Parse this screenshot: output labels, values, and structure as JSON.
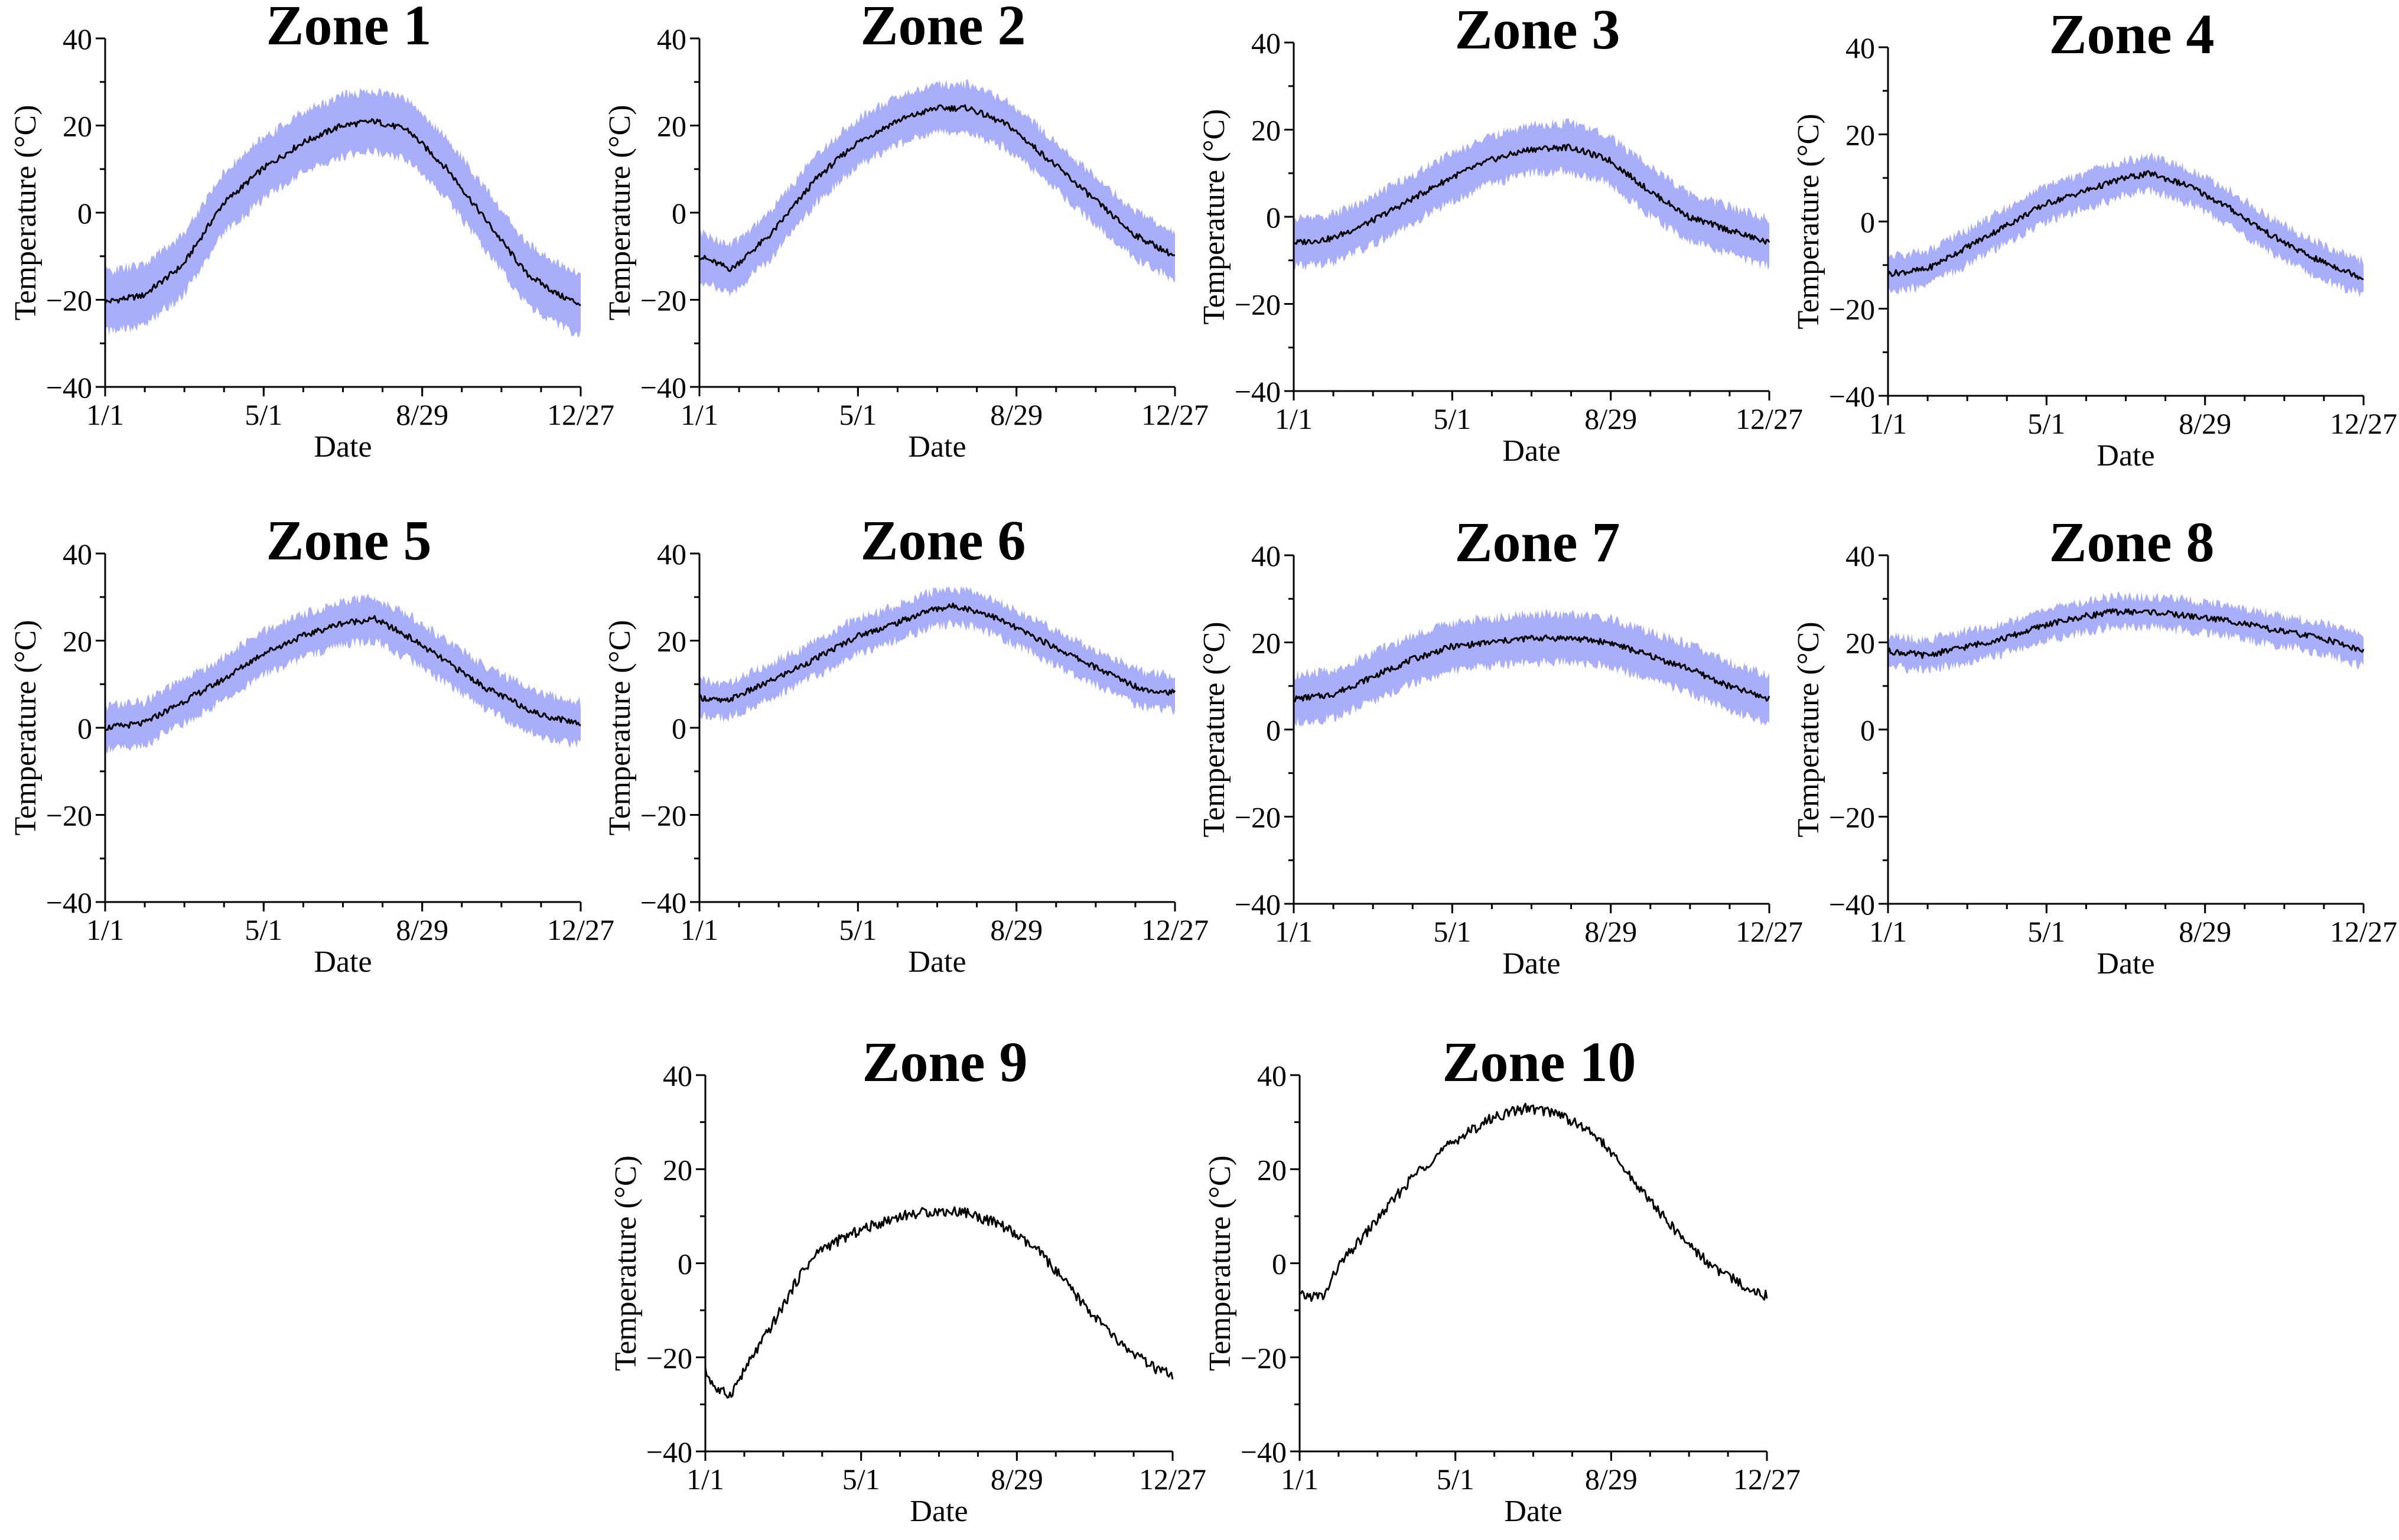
{
  "colors": {
    "mean_line": "#000000",
    "band_fill": "#a9aefb",
    "axis": "#000000"
  },
  "chart_data": [
    {
      "type": "area",
      "title": "Zone 1",
      "xlabel": "Date",
      "ylabel": "Temperature (°C)",
      "xticks": [
        "1/1",
        "5/1",
        "8/29",
        "12/27"
      ],
      "yticks": [
        "40",
        "20",
        "0",
        "−20",
        "−40"
      ],
      "ylim": [
        -40,
        40
      ],
      "mean": [
        [
          1,
          -20.5
        ],
        [
          30,
          -19
        ],
        [
          60,
          -12
        ],
        [
          90,
          2
        ],
        [
          120,
          10
        ],
        [
          150,
          16
        ],
        [
          180,
          20
        ],
        [
          205,
          21
        ],
        [
          230,
          19
        ],
        [
          260,
          10
        ],
        [
          290,
          -2
        ],
        [
          320,
          -14
        ],
        [
          345,
          -19
        ],
        [
          361,
          -21
        ]
      ],
      "band": [
        5,
        9
      ]
    },
    {
      "type": "area",
      "title": "Zone 2",
      "xlabel": "Date",
      "ylabel": "Temperature (°C)",
      "xticks": [
        "1/1",
        "5/1",
        "8/29",
        "12/27"
      ],
      "yticks": [
        "40",
        "20",
        "0",
        "−20",
        "−40"
      ],
      "ylim": [
        -40,
        40
      ],
      "mean": [
        [
          1,
          -10
        ],
        [
          25,
          -13
        ],
        [
          55,
          -5
        ],
        [
          90,
          8
        ],
        [
          120,
          16
        ],
        [
          150,
          21
        ],
        [
          180,
          24
        ],
        [
          205,
          24
        ],
        [
          235,
          20
        ],
        [
          270,
          11
        ],
        [
          300,
          3
        ],
        [
          330,
          -5
        ],
        [
          361,
          -10
        ]
      ],
      "band": [
        4,
        7
      ]
    },
    {
      "type": "area",
      "title": "Zone 3",
      "xlabel": "Date",
      "ylabel": "Temperature (°C)",
      "xticks": [
        "1/1",
        "5/1",
        "8/29",
        "12/27"
      ],
      "yticks": [
        "40",
        "20",
        "0",
        "−20",
        "−40"
      ],
      "ylim": [
        -40,
        40
      ],
      "mean": [
        [
          1,
          -6
        ],
        [
          30,
          -5
        ],
        [
          60,
          -1
        ],
        [
          90,
          4
        ],
        [
          120,
          9
        ],
        [
          150,
          13
        ],
        [
          180,
          15.5
        ],
        [
          210,
          16
        ],
        [
          240,
          13
        ],
        [
          270,
          6
        ],
        [
          300,
          0
        ],
        [
          330,
          -3
        ],
        [
          361,
          -6
        ]
      ],
      "band": [
        5,
        6
      ]
    },
    {
      "type": "area",
      "title": "Zone 4",
      "xlabel": "Date",
      "ylabel": "Temperature (°C)",
      "xticks": [
        "1/1",
        "5/1",
        "8/29",
        "12/27"
      ],
      "yticks": [
        "40",
        "20",
        "0",
        "−20",
        "−40"
      ],
      "ylim": [
        -40,
        40
      ],
      "mean": [
        [
          1,
          -12
        ],
        [
          30,
          -11
        ],
        [
          60,
          -6
        ],
        [
          90,
          -1
        ],
        [
          120,
          4
        ],
        [
          150,
          7
        ],
        [
          180,
          10
        ],
        [
          200,
          11
        ],
        [
          230,
          8
        ],
        [
          260,
          3
        ],
        [
          290,
          -3
        ],
        [
          320,
          -8
        ],
        [
          361,
          -13
        ]
      ],
      "band": [
        3,
        5
      ]
    },
    {
      "type": "area",
      "title": "Zone 5",
      "xlabel": "Date",
      "ylabel": "Temperature (°C)",
      "xticks": [
        "1/1",
        "5/1",
        "8/29",
        "12/27"
      ],
      "yticks": [
        "40",
        "20",
        "0",
        "−20",
        "−40"
      ],
      "ylim": [
        -40,
        40
      ],
      "mean": [
        [
          1,
          0
        ],
        [
          30,
          1
        ],
        [
          60,
          6
        ],
        [
          90,
          11
        ],
        [
          120,
          17
        ],
        [
          150,
          21
        ],
        [
          180,
          24
        ],
        [
          205,
          25
        ],
        [
          230,
          21
        ],
        [
          260,
          15
        ],
        [
          290,
          9
        ],
        [
          330,
          3
        ],
        [
          361,
          1
        ]
      ],
      "band": [
        4,
        6
      ]
    },
    {
      "type": "area",
      "title": "Zone 6",
      "xlabel": "Date",
      "ylabel": "Temperature (°C)",
      "xticks": [
        "1/1",
        "5/1",
        "8/29",
        "12/27"
      ],
      "yticks": [
        "40",
        "20",
        "0",
        "−20",
        "−40"
      ],
      "ylim": [
        -40,
        40
      ],
      "mean": [
        [
          1,
          7
        ],
        [
          20,
          6
        ],
        [
          50,
          10
        ],
        [
          90,
          16
        ],
        [
          120,
          21
        ],
        [
          150,
          24
        ],
        [
          175,
          27
        ],
        [
          195,
          28
        ],
        [
          220,
          26
        ],
        [
          260,
          20
        ],
        [
          300,
          14
        ],
        [
          335,
          9
        ],
        [
          361,
          8
        ]
      ],
      "band": [
        3,
        5
      ]
    },
    {
      "type": "area",
      "title": "Zone 7",
      "xlabel": "Date",
      "ylabel": "Temperature (°C)",
      "xticks": [
        "1/1",
        "5/1",
        "8/29",
        "12/27"
      ],
      "yticks": [
        "40",
        "20",
        "0",
        "−20",
        "−40"
      ],
      "ylim": [
        -40,
        40
      ],
      "mean": [
        [
          1,
          7
        ],
        [
          30,
          8
        ],
        [
          60,
          12
        ],
        [
          90,
          16
        ],
        [
          120,
          19
        ],
        [
          150,
          20
        ],
        [
          180,
          21
        ],
        [
          210,
          21
        ],
        [
          240,
          20
        ],
        [
          270,
          17
        ],
        [
          300,
          14
        ],
        [
          330,
          10
        ],
        [
          361,
          7
        ]
      ],
      "band": [
        5,
        6
      ]
    },
    {
      "type": "area",
      "title": "Zone 8",
      "xlabel": "Date",
      "ylabel": "Temperature (°C)",
      "xticks": [
        "1/1",
        "5/1",
        "8/29",
        "12/27"
      ],
      "yticks": [
        "40",
        "20",
        "0",
        "−20",
        "−40"
      ],
      "ylim": [
        -40,
        40
      ],
      "mean": [
        [
          1,
          18
        ],
        [
          30,
          17
        ],
        [
          60,
          19
        ],
        [
          90,
          21
        ],
        [
          120,
          24
        ],
        [
          150,
          26
        ],
        [
          170,
          27
        ],
        [
          200,
          27
        ],
        [
          230,
          26
        ],
        [
          260,
          25
        ],
        [
          290,
          23
        ],
        [
          330,
          21
        ],
        [
          361,
          18
        ]
      ],
      "band": [
        3,
        4
      ]
    },
    {
      "type": "line",
      "title": "Zone 9",
      "xlabel": "Date",
      "ylabel": "Temperature (°C)",
      "xticks": [
        "1/1",
        "5/1",
        "8/29",
        "12/27"
      ],
      "yticks": [
        "40",
        "20",
        "0",
        "−20",
        "−40"
      ],
      "ylim": [
        -40,
        40
      ],
      "mean": [
        [
          1,
          -23
        ],
        [
          10,
          -27
        ],
        [
          20,
          -28
        ],
        [
          35,
          -21
        ],
        [
          55,
          -12
        ],
        [
          75,
          -2
        ],
        [
          90,
          3
        ],
        [
          120,
          7
        ],
        [
          150,
          10
        ],
        [
          175,
          11
        ],
        [
          200,
          11
        ],
        [
          230,
          8
        ],
        [
          260,
          2
        ],
        [
          290,
          -8
        ],
        [
          320,
          -17
        ],
        [
          345,
          -22
        ],
        [
          361,
          -24
        ]
      ],
      "band": null
    },
    {
      "type": "line",
      "title": "Zone 10",
      "xlabel": "Date",
      "ylabel": "Temperature (°C)",
      "xticks": [
        "1/1",
        "5/1",
        "8/29",
        "12/27"
      ],
      "yticks": [
        "40",
        "20",
        "0",
        "−20",
        "−40"
      ],
      "ylim": [
        -40,
        40
      ],
      "mean": [
        [
          1,
          -7
        ],
        [
          20,
          -7
        ],
        [
          30,
          -1
        ],
        [
          60,
          9
        ],
        [
          90,
          19
        ],
        [
          120,
          26
        ],
        [
          150,
          31
        ],
        [
          175,
          33
        ],
        [
          200,
          32
        ],
        [
          230,
          27
        ],
        [
          260,
          17
        ],
        [
          290,
          7
        ],
        [
          320,
          -1
        ],
        [
          345,
          -5
        ],
        [
          361,
          -7
        ]
      ],
      "band": null
    }
  ]
}
